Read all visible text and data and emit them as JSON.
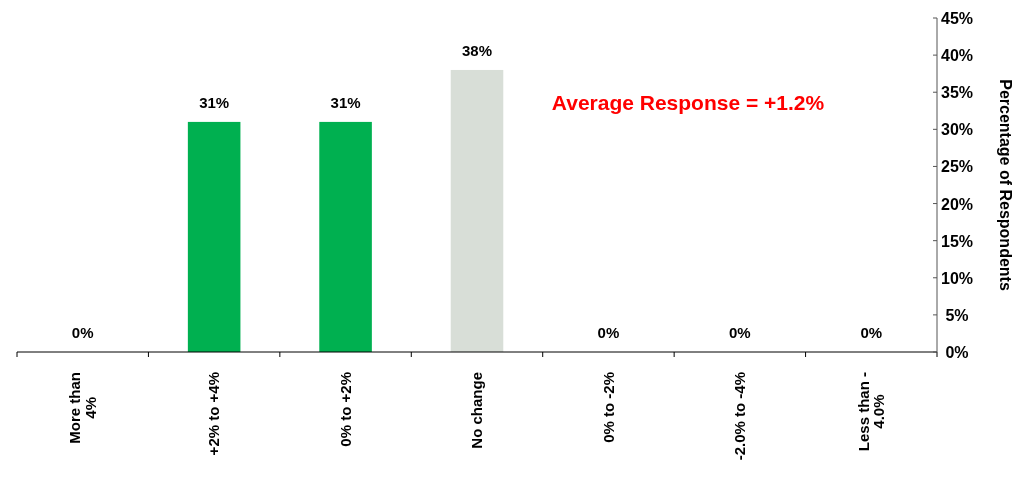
{
  "chart_data": {
    "type": "bar",
    "categories": [
      "More than\n4%",
      "+2% to +4%",
      "0% to +2%",
      "No change",
      "0% to -2%",
      "-2.0% to -4%",
      "Less than -\n4.0%"
    ],
    "values": [
      0,
      31,
      31,
      38,
      0,
      0,
      0
    ],
    "colors": [
      "#00b050",
      "#00b050",
      "#00b050",
      "#d8ded7",
      "#00b050",
      "#00b050",
      "#00b050"
    ],
    "value_labels": [
      "0%",
      "31%",
      "31%",
      "38%",
      "0%",
      "0%",
      "0%"
    ],
    "ylabel": "Percentage of Respondents",
    "ylim": [
      0,
      45
    ],
    "yticks": [
      {
        "value": 0,
        "label": "0%"
      },
      {
        "value": 5,
        "label": "5%"
      },
      {
        "value": 10,
        "label": "10%"
      },
      {
        "value": 15,
        "label": "15%"
      },
      {
        "value": 20,
        "label": "20%"
      },
      {
        "value": 25,
        "label": "25%"
      },
      {
        "value": 30,
        "label": "30%"
      },
      {
        "value": 35,
        "label": "35%"
      },
      {
        "value": 40,
        "label": "40%"
      },
      {
        "value": 45,
        "label": "45%"
      }
    ],
    "annotations": [
      "Average Response = +1.2%"
    ]
  }
}
